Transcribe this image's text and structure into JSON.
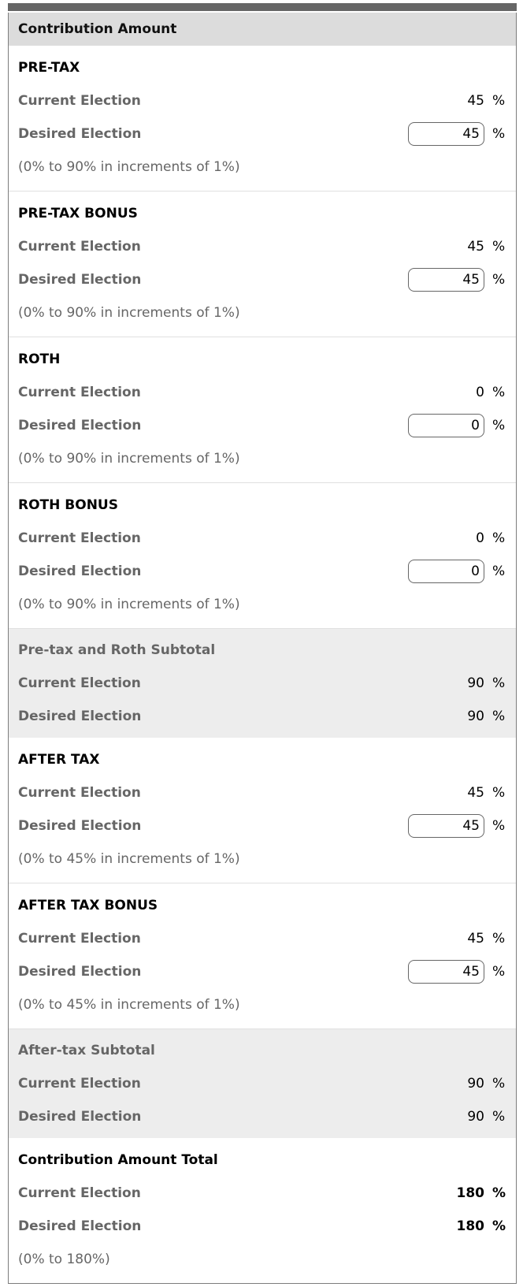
{
  "header": {
    "title": "Contribution Amount"
  },
  "labels": {
    "current": "Current Election",
    "desired": "Desired Election",
    "percent": "%"
  },
  "colors": {
    "top_bar": "#666666",
    "header_bg": "#dcdcdc",
    "subtotal_bg": "#ededed",
    "label_text": "#666666",
    "panel_border": "#7d7d7d",
    "divider": "#e0e0e0"
  },
  "sections": [
    {
      "kind": "plan",
      "title": "PRE-TAX",
      "current": "45",
      "desired": "45",
      "range_note": "(0% to 90% in increments of 1%)"
    },
    {
      "kind": "plan",
      "title": "PRE-TAX BONUS",
      "current": "45",
      "desired": "45",
      "range_note": "(0% to 90% in increments of 1%)"
    },
    {
      "kind": "plan",
      "title": "ROTH",
      "current": "0",
      "desired": "0",
      "range_note": "(0% to 90% in increments of 1%)"
    },
    {
      "kind": "plan",
      "title": "ROTH BONUS",
      "current": "0",
      "desired": "0",
      "range_note": "(0% to 90% in increments of 1%)"
    },
    {
      "kind": "subtotal",
      "title": "Pre-tax and Roth Subtotal",
      "current": "90",
      "desired": "90"
    },
    {
      "kind": "plan",
      "title": "AFTER TAX",
      "current": "45",
      "desired": "45",
      "range_note": "(0% to 45% in increments of 1%)"
    },
    {
      "kind": "plan",
      "title": "AFTER TAX BONUS",
      "current": "45",
      "desired": "45",
      "range_note": "(0% to 45% in increments of 1%)"
    },
    {
      "kind": "subtotal",
      "title": "After-tax Subtotal",
      "current": "90",
      "desired": "90"
    },
    {
      "kind": "total",
      "title": "Contribution Amount Total",
      "current": "180",
      "desired": "180",
      "range_note": "(0% to 180%)"
    }
  ]
}
